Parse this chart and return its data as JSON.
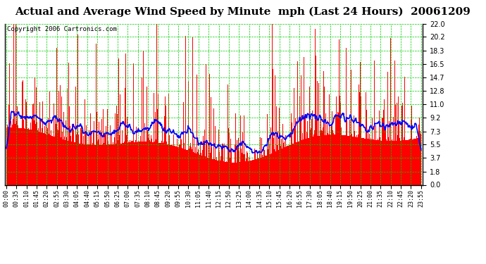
{
  "title": "Actual and Average Wind Speed by Minute  mph (Last 24 Hours)  20061209",
  "copyright": "Copyright 2006 Cartronics.com",
  "yticks": [
    0.0,
    1.8,
    3.7,
    5.5,
    7.3,
    9.2,
    11.0,
    12.8,
    14.7,
    16.5,
    18.3,
    20.2,
    22.0
  ],
  "ymin": 0.0,
  "ymax": 22.0,
  "background_color": "#ffffff",
  "plot_bg_color": "#ffffff",
  "grid_color": "#00cc00",
  "bar_color": "#ff0000",
  "line_color": "#0000ff",
  "title_fontsize": 11,
  "copyright_fontsize": 6.5,
  "n_minutes": 1440,
  "seed": 42,
  "time_labels": [
    "00:00",
    "00:35",
    "01:10",
    "01:45",
    "02:20",
    "02:55",
    "03:30",
    "04:05",
    "04:40",
    "05:15",
    "05:50",
    "06:25",
    "07:00",
    "07:35",
    "08:10",
    "08:45",
    "09:20",
    "09:55",
    "10:30",
    "11:05",
    "11:40",
    "12:15",
    "12:50",
    "13:25",
    "14:00",
    "14:35",
    "15:10",
    "15:45",
    "16:20",
    "16:55",
    "17:30",
    "18:05",
    "18:40",
    "19:15",
    "19:50",
    "20:25",
    "21:00",
    "21:35",
    "22:10",
    "22:45",
    "23:20",
    "23:55"
  ]
}
